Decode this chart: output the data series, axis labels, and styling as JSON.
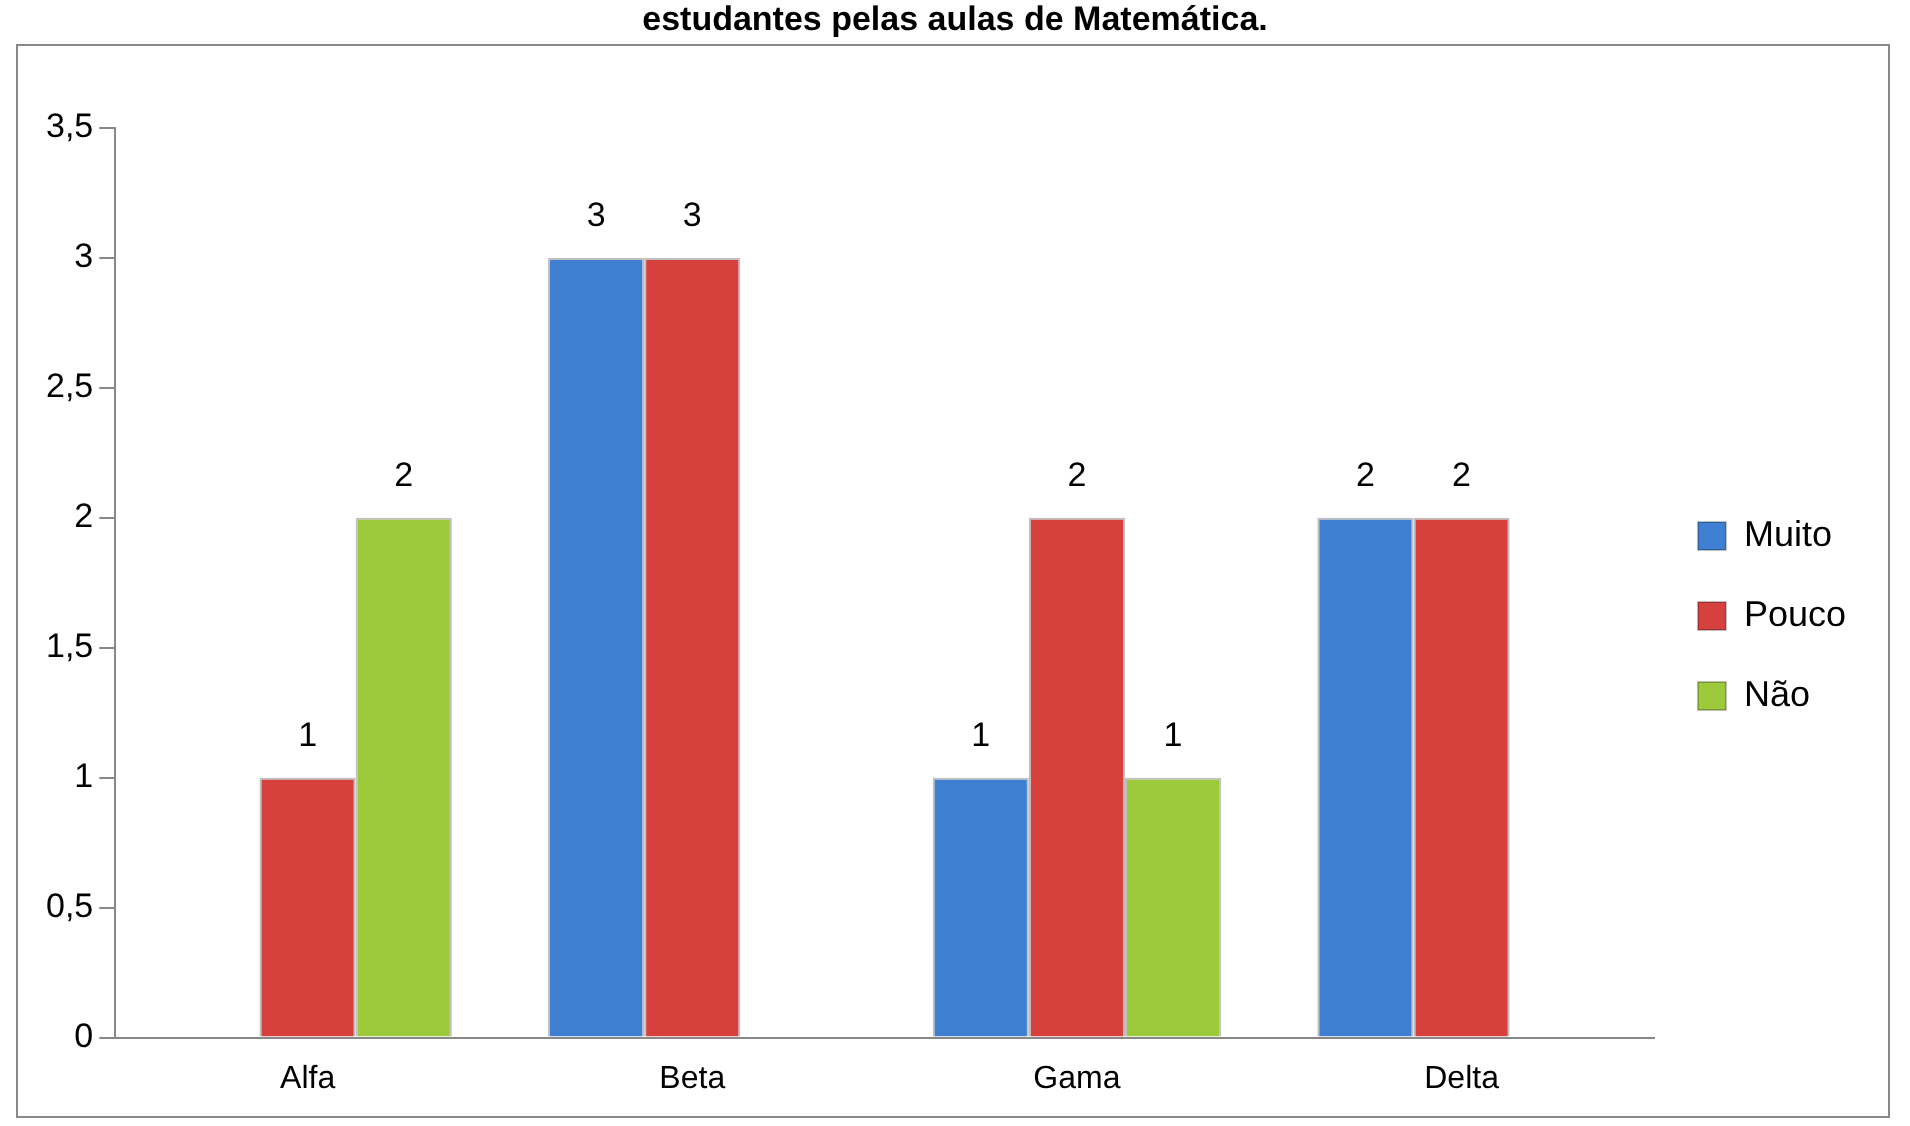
{
  "chart_data": {
    "type": "bar",
    "title": "estudantes pelas aulas de Matemática.",
    "categories": [
      "Alfa",
      "Beta",
      "Gama",
      "Delta"
    ],
    "series": [
      {
        "name": "Muito",
        "color": "#3f7fd2",
        "values": [
          null,
          3,
          1,
          2
        ]
      },
      {
        "name": "Pouco",
        "color": "#d6403d",
        "values": [
          1,
          3,
          2,
          2
        ]
      },
      {
        "name": "Não",
        "color": "#9cca3a",
        "values": [
          2,
          null,
          1,
          null
        ]
      }
    ],
    "ylim": [
      0,
      3.5
    ],
    "yticks": [
      0,
      {
        "value": 0.5,
        "label": "0,5"
      },
      1,
      {
        "value": 1.5,
        "label": "1,5"
      },
      2,
      {
        "value": 2.5,
        "label": "2,5"
      },
      3,
      {
        "value": 3.5,
        "label": "3,5"
      }
    ],
    "grid": false,
    "legend": "right",
    "data_labels": true
  }
}
